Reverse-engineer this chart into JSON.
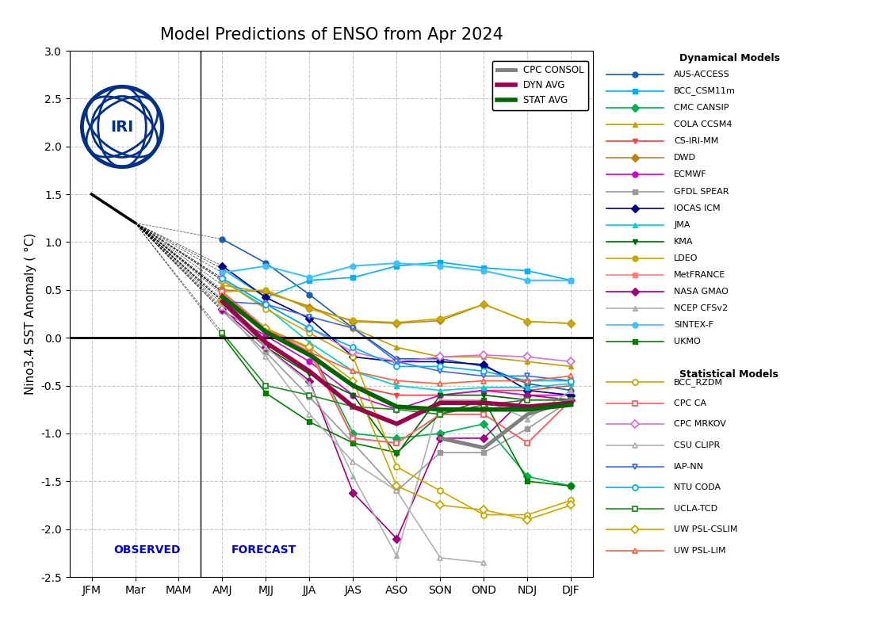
{
  "title": "Model Predictions of ENSO from Apr 2024",
  "ylabel": "Nino3.4 SST Anomaly ( °C)",
  "x_labels": [
    "JFM",
    "Mar",
    "MAM",
    "AMJ",
    "MJJ",
    "JJA",
    "JAS",
    "ASO",
    "SON",
    "OND",
    "NDJ",
    "DJF"
  ],
  "ylim": [
    -2.5,
    3.0
  ],
  "observed_label": "OBSERVED",
  "forecast_label": "FORECAST",
  "dyn_models": {
    "AUS-ACCESS": {
      "color": "#1a5fad",
      "marker": "o",
      "ms": 5,
      "lw": 1.2,
      "y": [
        null,
        null,
        null,
        1.03,
        0.78,
        0.45,
        0.1,
        -0.22,
        -0.22,
        -0.3,
        -0.48,
        -0.55
      ]
    },
    "BCC_CSM11m": {
      "color": "#00b0f0",
      "marker": "s",
      "ms": 5,
      "lw": 1.2,
      "y": [
        null,
        null,
        null,
        0.72,
        0.42,
        0.6,
        0.63,
        0.75,
        0.79,
        0.73,
        0.7,
        0.6
      ]
    },
    "CMC CANSIP": {
      "color": "#00b050",
      "marker": "D",
      "ms": 5,
      "lw": 1.2,
      "y": [
        null,
        null,
        null,
        0.38,
        0.07,
        -0.1,
        -1.0,
        -1.05,
        -1.0,
        -0.9,
        -1.45,
        -1.55
      ]
    },
    "COLA CCSM4": {
      "color": "#c0a000",
      "marker": "^",
      "ms": 5,
      "lw": 1.2,
      "y": [
        null,
        null,
        null,
        0.55,
        0.47,
        0.33,
        0.1,
        -0.1,
        -0.2,
        -0.2,
        -0.25,
        -0.3
      ]
    },
    "CS-IRI-MM": {
      "color": "#ff4040",
      "marker": "v",
      "ms": 5,
      "lw": 1.2,
      "y": [
        null,
        null,
        null,
        0.48,
        0.1,
        -0.15,
        -0.5,
        -0.6,
        -0.6,
        -0.55,
        -0.55,
        -0.5
      ]
    },
    "DWD": {
      "color": "#b8860b",
      "marker": "D",
      "ms": 5,
      "lw": 1.2,
      "y": [
        null,
        null,
        null,
        0.5,
        0.48,
        0.32,
        0.17,
        0.15,
        0.18,
        0.35,
        0.17,
        0.15
      ]
    },
    "ECMWF": {
      "color": "#cc00cc",
      "marker": "o",
      "ms": 5,
      "lw": 1.2,
      "y": [
        null,
        null,
        null,
        0.28,
        0.02,
        -0.25,
        -0.6,
        -0.75,
        -0.6,
        -0.55,
        -0.6,
        -0.6
      ]
    },
    "GFDL SPEAR": {
      "color": "#999999",
      "marker": "s",
      "ms": 5,
      "lw": 1.2,
      "y": [
        null,
        null,
        null,
        0.28,
        -0.15,
        -0.62,
        -1.1,
        -1.6,
        -1.2,
        -1.2,
        -0.95,
        -0.65
      ]
    },
    "IOCAS ICM": {
      "color": "#00008b",
      "marker": "D",
      "ms": 5,
      "lw": 1.2,
      "y": [
        null,
        null,
        null,
        0.75,
        0.42,
        0.2,
        -0.2,
        -0.25,
        -0.25,
        -0.28,
        -0.55,
        -0.6
      ]
    },
    "JMA": {
      "color": "#00ced1",
      "marker": "^",
      "ms": 5,
      "lw": 1.2,
      "y": [
        null,
        null,
        null,
        0.6,
        0.32,
        -0.05,
        -0.35,
        -0.5,
        -0.55,
        -0.52,
        -0.52,
        -0.48
      ]
    },
    "KMA": {
      "color": "#006400",
      "marker": "v",
      "ms": 5,
      "lw": 1.2,
      "y": [
        null,
        null,
        null,
        0.4,
        -0.1,
        -0.38,
        -0.6,
        -1.22,
        -0.6,
        -0.6,
        -0.65,
        -0.65
      ]
    },
    "LDEO": {
      "color": "#c8a800",
      "marker": "o",
      "ms": 5,
      "lw": 1.2,
      "y": [
        null,
        null,
        null,
        0.48,
        0.5,
        0.3,
        0.18,
        0.16,
        0.2,
        0.35,
        0.17,
        0.15
      ]
    },
    "MetFRANCE": {
      "color": "#ff8080",
      "marker": "s",
      "ms": 5,
      "lw": 1.2,
      "y": [
        null,
        null,
        null,
        0.47,
        0.1,
        -0.12,
        -1.05,
        -1.1,
        -0.8,
        -0.8,
        -1.1,
        -0.65
      ]
    },
    "NASA GMAO": {
      "color": "#a00080",
      "marker": "D",
      "ms": 5,
      "lw": 1.2,
      "y": [
        null,
        null,
        null,
        0.3,
        -0.1,
        -0.45,
        -1.62,
        -2.1,
        -1.05,
        -1.05,
        -0.6,
        -0.65
      ]
    },
    "NCEP CFSv2": {
      "color": "#b0b0b0",
      "marker": "^",
      "ms": 5,
      "lw": 1.2,
      "y": [
        null,
        null,
        null,
        0.35,
        -0.1,
        -0.48,
        -1.45,
        -2.28,
        -0.65,
        -0.65,
        -0.85,
        -0.55
      ]
    },
    "SINTEX-F": {
      "color": "#40c0ff",
      "marker": "o",
      "ms": 5,
      "lw": 1.5,
      "y": [
        null,
        null,
        null,
        0.68,
        0.75,
        0.63,
        0.75,
        0.78,
        0.75,
        0.7,
        0.6,
        0.6
      ]
    },
    "UKMO": {
      "color": "#008000",
      "marker": "s",
      "ms": 5,
      "lw": 1.2,
      "y": [
        null,
        null,
        null,
        0.02,
        -0.58,
        -0.88,
        -1.1,
        -1.2,
        -0.8,
        -0.65,
        -1.5,
        -1.55
      ]
    }
  },
  "stat_models": {
    "BCC_RZDM": {
      "color": "#c8a800",
      "marker": "o",
      "ms": 5,
      "lw": 1.2,
      "y": [
        null,
        null,
        null,
        0.6,
        0.3,
        0.05,
        -0.2,
        -1.35,
        -1.6,
        -1.85,
        -1.85,
        -1.7
      ]
    },
    "CPC CA": {
      "color": "#ff6060",
      "marker": "s",
      "ms": 5,
      "lw": 1.2,
      "y": [
        null,
        null,
        null,
        0.48,
        0.08,
        -0.15,
        -1.05,
        -1.1,
        -0.8,
        -0.8,
        -1.1,
        -0.65
      ]
    },
    "CPC MRKOV": {
      "color": "#da70d6",
      "marker": "D",
      "ms": 5,
      "lw": 1.2,
      "y": [
        null,
        null,
        null,
        0.62,
        0.35,
        0.1,
        -0.15,
        -0.25,
        -0.2,
        -0.18,
        -0.2,
        -0.25
      ]
    },
    "CSU CLIPR": {
      "color": "#b0b0b0",
      "marker": "^",
      "ms": 5,
      "lw": 1.2,
      "y": [
        null,
        null,
        null,
        0.32,
        -0.2,
        -0.8,
        -1.3,
        -1.6,
        -2.3,
        -2.35,
        null,
        null
      ]
    },
    "IAP-NN": {
      "color": "#4169e1",
      "marker": "v",
      "ms": 5,
      "lw": 1.2,
      "y": [
        null,
        null,
        null,
        0.38,
        0.35,
        0.22,
        0.1,
        -0.25,
        -0.35,
        -0.4,
        -0.4,
        -0.45
      ]
    },
    "NTU CODA": {
      "color": "#00b0f0",
      "marker": "o",
      "ms": 5,
      "lw": 1.2,
      "y": [
        null,
        null,
        null,
        0.62,
        0.35,
        0.1,
        -0.1,
        -0.3,
        -0.3,
        -0.35,
        -0.45,
        -0.45
      ]
    },
    "UCLA-TCD": {
      "color": "#228b22",
      "marker": "s",
      "ms": 5,
      "lw": 1.2,
      "y": [
        null,
        null,
        null,
        0.05,
        -0.5,
        -0.6,
        -0.72,
        -0.75,
        -0.8,
        -0.7,
        -0.65,
        -0.65
      ]
    },
    "UW PSL-CSLIM": {
      "color": "#c8a800",
      "marker": "D",
      "ms": 5,
      "lw": 1.2,
      "y": [
        null,
        null,
        null,
        0.38,
        0.1,
        -0.1,
        -0.45,
        -1.55,
        -1.75,
        -1.8,
        -1.9,
        -1.75
      ]
    },
    "UW PSL-LIM": {
      "color": "#ff6040",
      "marker": "^",
      "ms": 5,
      "lw": 1.2,
      "y": [
        null,
        null,
        null,
        0.45,
        0.08,
        -0.15,
        -0.35,
        -0.45,
        -0.48,
        -0.45,
        -0.45,
        -0.4
      ]
    }
  },
  "cpc_consol": {
    "color": "#808080",
    "lw": 3.5,
    "y": [
      null,
      null,
      null,
      null,
      null,
      null,
      null,
      null,
      -1.05,
      -1.15,
      -0.8,
      -0.65
    ]
  },
  "dyn_avg": {
    "color": "#9b004a",
    "lw": 4.0,
    "y": [
      null,
      null,
      null,
      0.38,
      -0.05,
      -0.35,
      -0.72,
      -0.9,
      -0.68,
      -0.68,
      -0.72,
      -0.68
    ]
  },
  "stat_avg": {
    "color": "#006400",
    "lw": 4.0,
    "y": [
      null,
      null,
      null,
      0.43,
      0.06,
      -0.18,
      -0.5,
      -0.72,
      -0.75,
      -0.75,
      -0.75,
      -0.7
    ]
  },
  "background_color": "#ffffff",
  "grid_color": "#c8c8c8",
  "iri_logo_color": "#003087"
}
